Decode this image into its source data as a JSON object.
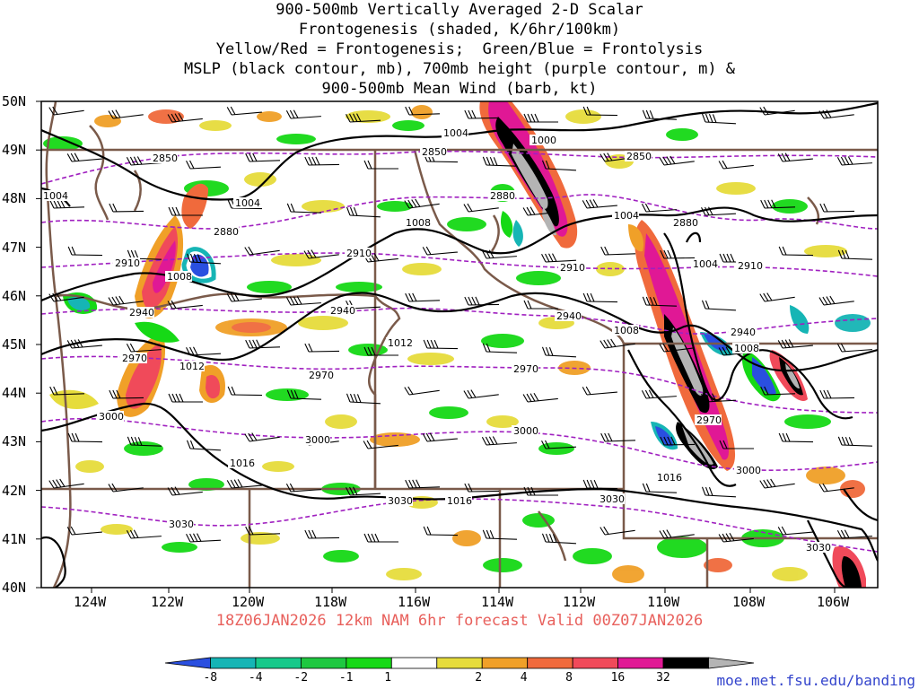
{
  "title_lines": [
    "900-500mb Vertically Averaged 2-D Scalar",
    "Frontogenesis (shaded, K/6hr/100km)",
    "Yellow/Red = Frontogenesis;  Green/Blue = Frontolysis",
    "MSLP (black contour, mb), 700mb height (purple contour, m) &",
    "900-500mb Mean Wind (barb, kt)"
  ],
  "subtitle": "18Z06JAN2026 12km NAM 6hr forecast Valid 00Z07JAN2026",
  "credit": "moe.met.fsu.edu/banding",
  "lat_labels": [
    "50N",
    "49N",
    "48N",
    "47N",
    "46N",
    "45N",
    "44N",
    "43N",
    "42N",
    "41N",
    "40N"
  ],
  "lon_labels": [
    "124W",
    "122W",
    "120W",
    "118W",
    "116W",
    "114W",
    "112W",
    "110W",
    "108W",
    "106W"
  ],
  "colorbar": {
    "labels": [
      "-8",
      "-4",
      "-2",
      "-1",
      "1",
      "2",
      "4",
      "8",
      "16",
      "32"
    ],
    "colors": [
      "#2a4fe0",
      "#16b5b5",
      "#16c98a",
      "#1ec840",
      "#16d916",
      "#ffffff",
      "#e6dc3c",
      "#f0a028",
      "#f06a3c",
      "#f04a5a",
      "#e01895",
      "#000000",
      "#b4b4b4"
    ]
  },
  "colors": {
    "mslp": "#000000",
    "height": "#a020c0",
    "border": "#7a5a4a",
    "frame": "#000000"
  },
  "mslp_labels": [
    "1004",
    "1000",
    "1004",
    "1004",
    "1008",
    "1004",
    "1008",
    "1004",
    "1012",
    "1012",
    "1008",
    "1008",
    "1016",
    "1016",
    "1016"
  ],
  "height_labels": [
    "2850",
    "2850",
    "2850",
    "2880",
    "2880",
    "2880",
    "2910",
    "2910",
    "2910",
    "2910",
    "2940",
    "2940",
    "2940",
    "2940",
    "2970",
    "2970",
    "2970",
    "2970",
    "3000",
    "3000",
    "3000",
    "3000",
    "3030",
    "3030",
    "3030",
    "3030"
  ]
}
